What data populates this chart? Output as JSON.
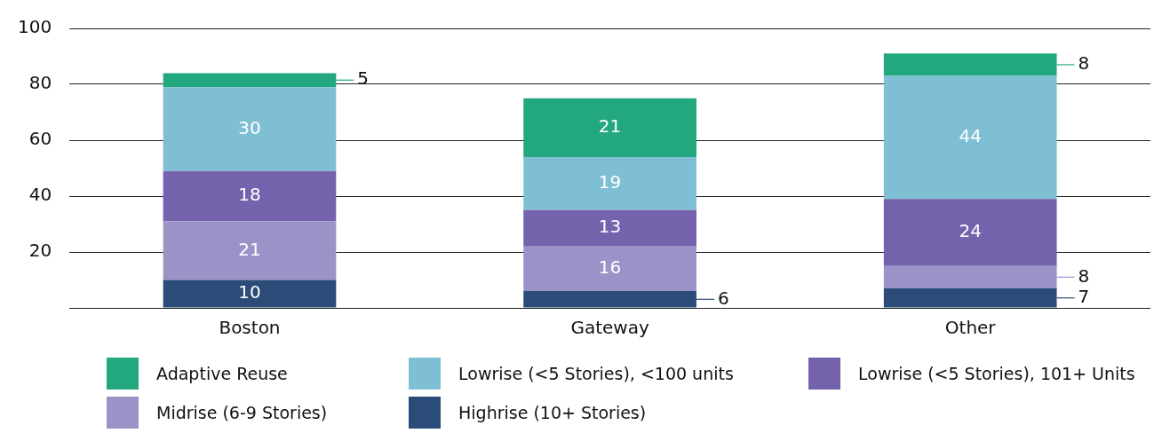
{
  "chart_data": {
    "type": "bar",
    "stacked": true,
    "categories": [
      "Boston",
      "Gateway",
      "Other"
    ],
    "series": [
      {
        "name": "Highrise (10+ Stories)",
        "color": "#2b4c78",
        "values": [
          10,
          6,
          7
        ]
      },
      {
        "name": "Midrise (6-9 Stories)",
        "color": "#9b93c8",
        "values": [
          21,
          16,
          8
        ]
      },
      {
        "name": "Lowrise (<5 Stories), 101+ Units",
        "color": "#7462ad",
        "values": [
          18,
          13,
          24
        ]
      },
      {
        "name": "Lowrise (<5 Stories), <100 units",
        "color": "#7fbfd3",
        "values": [
          30,
          19,
          44
        ]
      },
      {
        "name": "Adaptive Reuse",
        "color": "#22a77f",
        "values": [
          5,
          21,
          8
        ]
      }
    ],
    "ylim": [
      0,
      100
    ],
    "yticks": [
      {
        "value": 0,
        "label": null
      },
      20,
      40,
      60,
      80,
      100
    ],
    "grid": "y",
    "data_labels": true,
    "legend": "bottom"
  }
}
